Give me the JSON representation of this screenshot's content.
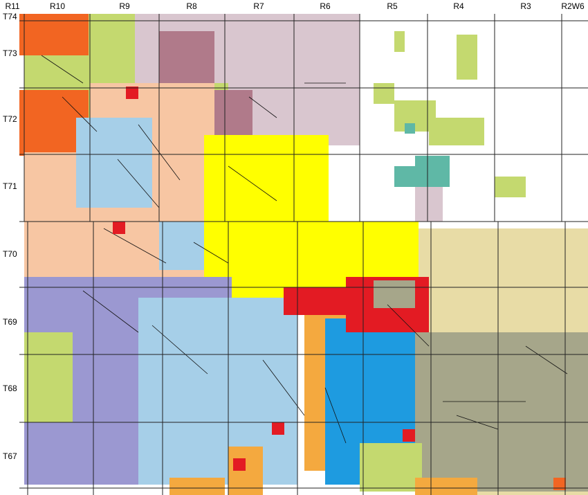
{
  "ranges": [
    "R11",
    "R10",
    "R9",
    "R8",
    "R7",
    "R6",
    "R5",
    "R4",
    "R3",
    "R2W6"
  ],
  "townships": [
    "T74",
    "T73",
    "T72",
    "T71",
    "T70",
    "T69",
    "T68",
    "T67"
  ]
}
